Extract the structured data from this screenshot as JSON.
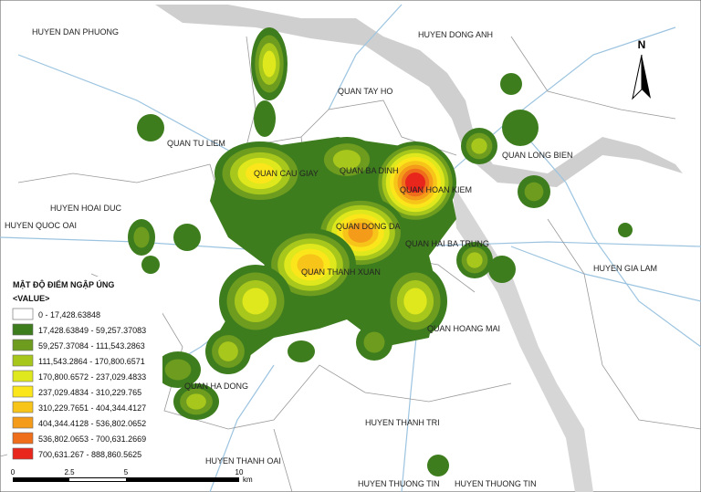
{
  "map": {
    "labels": [
      "HUYEN DAN PHUONG",
      "HUYEN DONG ANH",
      "QUAN TAY HO",
      "QUAN TU LIEM",
      "QUAN LONG BIEN",
      "QUAN CAU GIAY",
      "QUAN BA DINH",
      "QUAN HOAN KIEM",
      "HUYEN HOAI DUC",
      "HUYEN QUOC OAI",
      "QUAN DONG DA",
      "QUAN HAI BA TRUNG",
      "HUYEN GIA LAM",
      "QUAN THANH XUAN",
      "QUAN HOANG MAI",
      "QUAN HA DONG",
      "HUYEN THANH TRI",
      "HUYEN THANH OAI",
      "HUYEN THUONG TIN",
      "HUYEN THUONG TIN"
    ],
    "north": "N",
    "legend": {
      "title": "MẬT ĐỘ ĐIỂM NGẬP ÚNG",
      "subtitle": "<VALUE>",
      "items": [
        {
          "label": "0 - 17,428.63848",
          "color": "#ffffff"
        },
        {
          "label": "17,428.63849 - 59,257.37083",
          "color": "#3e7d1e"
        },
        {
          "label": "59,257.37084 - 111,543.2863",
          "color": "#6d9c1f"
        },
        {
          "label": "111,543.2864 - 170,800.6571",
          "color": "#a8c71c"
        },
        {
          "label": "170,800.6572 - 237,029.4833",
          "color": "#dfe81c"
        },
        {
          "label": "237,029.4834 - 310,229.765",
          "color": "#fbe61b"
        },
        {
          "label": "310,229.7651 - 404,344.4127",
          "color": "#f7c41a"
        },
        {
          "label": "404,344.4128 - 536,802.0652",
          "color": "#f49c1a"
        },
        {
          "label": "536,802.0653 - 700,631.2669",
          "color": "#ef6e1b"
        },
        {
          "label": "700,631.267 - 888,860.5625",
          "color": "#e8261c"
        }
      ]
    },
    "scale": {
      "ticks": [
        0,
        2.5,
        5,
        10
      ],
      "unit": "km"
    }
  }
}
